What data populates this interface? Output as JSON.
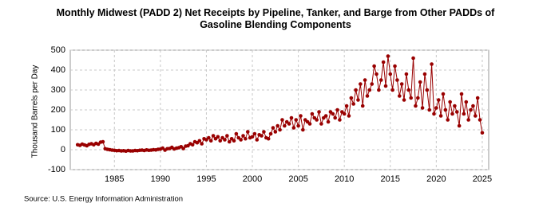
{
  "chart_data": {
    "type": "line",
    "title": "Monthly Midwest (PADD 2) Net Receipts by Pipeline, Tanker, and Barge from Other PADDs of Gasoline Blending Components",
    "y_label": "Thousand Barrels per Day",
    "source": "Source: U.S. Energy Information Administration",
    "xlim": [
      1980.2,
      2025.7
    ],
    "xticks": [
      1985,
      1990,
      1995,
      2000,
      2005,
      2010,
      2015,
      2020,
      2025
    ],
    "ylim": [
      -100,
      500
    ],
    "yticks": [
      -100,
      0,
      100,
      200,
      300,
      400,
      500
    ],
    "grid": true,
    "x": [
      1981,
      1981.25,
      1981.5,
      1981.75,
      1982,
      1982.25,
      1982.5,
      1982.75,
      1983,
      1983.25,
      1983.5,
      1983.75,
      1984,
      1984.25,
      1984.5,
      1984.75,
      1985,
      1985.25,
      1985.5,
      1985.75,
      1986,
      1986.25,
      1986.5,
      1986.75,
      1987,
      1987.25,
      1987.5,
      1987.75,
      1988,
      1988.25,
      1988.5,
      1988.75,
      1989,
      1989.25,
      1989.5,
      1989.75,
      1990,
      1990.25,
      1990.5,
      1990.75,
      1991,
      1991.25,
      1991.5,
      1991.75,
      1992,
      1992.25,
      1992.5,
      1992.75,
      1993,
      1993.25,
      1993.5,
      1993.75,
      1994,
      1994.25,
      1994.5,
      1994.75,
      1995,
      1995.25,
      1995.5,
      1995.75,
      1996,
      1996.25,
      1996.5,
      1996.75,
      1997,
      1997.25,
      1997.5,
      1997.75,
      1998,
      1998.25,
      1998.5,
      1998.75,
      1999,
      1999.25,
      1999.5,
      1999.75,
      2000,
      2000.25,
      2000.5,
      2000.75,
      2001,
      2001.25,
      2001.5,
      2001.75,
      2002,
      2002.25,
      2002.5,
      2002.75,
      2003,
      2003.25,
      2003.5,
      2003.75,
      2004,
      2004.25,
      2004.5,
      2004.75,
      2005,
      2005.25,
      2005.5,
      2005.75,
      2006,
      2006.25,
      2006.5,
      2006.75,
      2007,
      2007.25,
      2007.5,
      2007.75,
      2008,
      2008.25,
      2008.5,
      2008.75,
      2009,
      2009.25,
      2009.5,
      2009.75,
      2010,
      2010.25,
      2010.5,
      2010.75,
      2011,
      2011.25,
      2011.5,
      2011.75,
      2012,
      2012.25,
      2012.5,
      2012.75,
      2013,
      2013.25,
      2013.5,
      2013.75,
      2014,
      2014.25,
      2014.5,
      2014.75,
      2015,
      2015.25,
      2015.5,
      2015.75,
      2016,
      2016.25,
      2016.5,
      2016.75,
      2017,
      2017.25,
      2017.5,
      2017.75,
      2018,
      2018.25,
      2018.5,
      2018.75,
      2019,
      2019.25,
      2019.5,
      2019.75,
      2020,
      2020.25,
      2020.5,
      2020.75,
      2021,
      2021.25,
      2021.5,
      2021.75,
      2022,
      2022.25,
      2022.5,
      2022.75,
      2023,
      2023.25,
      2023.5,
      2023.75,
      2024,
      2024.25,
      2024.5,
      2024.75,
      2025
    ],
    "series": [
      {
        "color": "#990000",
        "values": [
          25,
          22,
          28,
          24,
          20,
          27,
          30,
          25,
          32,
          28,
          38,
          40,
          5,
          2,
          0,
          -2,
          -3,
          -5,
          -4,
          -6,
          -5,
          -7,
          -4,
          -6,
          -6,
          -4,
          -5,
          -3,
          -2,
          -4,
          -1,
          -3,
          -2,
          0,
          -1,
          2,
          3,
          8,
          -2,
          5,
          6,
          12,
          4,
          8,
          10,
          15,
          6,
          18,
          20,
          30,
          25,
          40,
          35,
          45,
          30,
          55,
          50,
          60,
          45,
          70,
          55,
          65,
          45,
          60,
          50,
          70,
          40,
          55,
          45,
          80,
          60,
          50,
          70,
          55,
          90,
          60,
          65,
          80,
          50,
          75,
          70,
          90,
          60,
          55,
          80,
          110,
          90,
          120,
          100,
          150,
          120,
          140,
          130,
          160,
          110,
          150,
          120,
          170,
          100,
          150,
          140,
          130,
          180,
          160,
          150,
          190,
          130,
          160,
          170,
          140,
          190,
          180,
          160,
          200,
          150,
          190,
          180,
          220,
          170,
          260,
          230,
          300,
          250,
          330,
          220,
          350,
          270,
          300,
          330,
          420,
          380,
          300,
          350,
          440,
          320,
          470,
          380,
          300,
          420,
          350,
          270,
          330,
          250,
          380,
          300,
          260,
          460,
          220,
          260,
          340,
          210,
          380,
          300,
          200,
          430,
          180,
          210,
          250,
          170,
          280,
          200,
          150,
          240,
          180,
          220,
          190,
          120,
          280,
          180,
          240,
          150,
          200,
          220,
          170,
          260,
          150,
          85
        ]
      }
    ]
  }
}
